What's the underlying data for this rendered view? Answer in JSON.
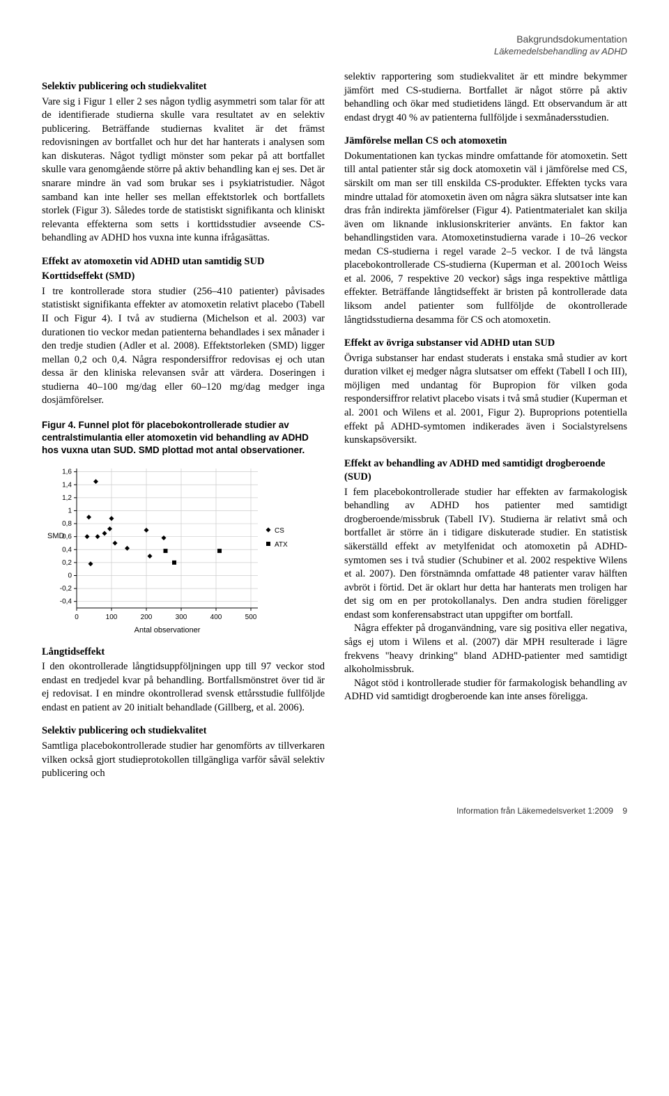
{
  "header": {
    "line1": "Bakgrundsdokumentation",
    "line2": "Läkemedelsbehandling av ADHD"
  },
  "left": {
    "sec1_title": "Selektiv publicering och studiekvalitet",
    "sec1_body": "Vare sig i Figur 1 eller 2 ses någon tydlig asymmetri som talar för att de identifierade studierna skulle vara resultatet av en selektiv publicering. Beträffande studiernas kvalitet är det främst redovisningen av bortfallet och hur det har hanterats i analysen som kan diskuteras. Något tydligt mönster som pekar på att bortfallet skulle vara genomgående större på aktiv behandling kan ej ses. Det är snarare mindre än vad som brukar ses i psykiatristudier. Något samband kan inte heller ses mellan effektstorlek och bortfallets storlek (Figur 3). Således torde de statistiskt signifikanta och kliniskt relevanta effekterna som setts i korttidsstudier avseende CS-behandling av ADHD hos vuxna inte kunna ifrågasättas.",
    "sec2_title": "Effekt av atomoxetin vid ADHD utan samtidig SUD",
    "sec2_sub": "Korttidseffekt (SMD)",
    "sec2_body": "I tre kontrollerade stora studier (256–410 patienter) påvisades statistiskt signifikanta effekter av atomoxetin relativt placebo (Tabell II och Figur 4). I två av studierna (Michelson et al. 2003) var durationen tio veckor medan patienterna behandlades i sex månader i den tredje studien (Adler et al. 2008). Effektstorleken (SMD) ligger mellan 0,2 och 0,4. Några respondersiffror redovisas ej och utan dessa är den kliniska relevansen svår att värdera. Doseringen i studierna 40–100 mg/dag eller 60–120 mg/dag medger inga dosjämförelser.",
    "figcap": "Figur 4. Funnel plot för placebokontrollerade studier av centralstimulantia eller atomoxetin vid behandling av ADHD hos vuxna utan SUD. SMD plottad mot antal observationer.",
    "sec3_title": "Långtidseffekt",
    "sec3_body": "I den okontrollerade långtidsuppföljningen upp till 97 veckor stod endast en tredjedel kvar på behandling. Bortfallsmönstret över tid är ej redovisat. I en mindre okontrollerad svensk ettårsstudie fullföljde endast en patient av 20 initialt behandlade (Gillberg, et al. 2006).",
    "sec4_title": "Selektiv publicering och studiekvalitet",
    "sec4_body": "Samtliga placebokontrollerade studier har genomförts av tillverkaren vilken också gjort studieprotokollen tillgängliga varför såväl selektiv publicering och"
  },
  "right": {
    "r1": "selektiv rapportering som studiekvalitet är ett mindre bekymmer jämfört med CS-studierna. Bortfallet är något större på aktiv behandling och ökar med studietidens längd. Ett observandum är att endast drygt 40 % av patienterna fullföljde i sexmånadersstudien.",
    "r2_title": "Jämförelse mellan CS och atomoxetin",
    "r2_body": "Dokumentationen kan tyckas mindre omfattande för atomoxetin. Sett till antal patienter står sig dock atomoxetin väl i jämförelse med CS, särskilt om man ser till enskilda CS-produkter. Effekten tycks vara mindre uttalad för atomoxetin även om några säkra slutsatser inte kan dras från indirekta jämförelser (Figur 4). Patientmaterialet kan skilja även om liknande inklusionskriterier använts. En faktor kan behandlingstiden vara. Atomoxetinstudierna varade i 10–26 veckor medan CS-studierna i regel varade 2–5 veckor. I de två längsta placebokontrollerade CS-studierna (Kuperman et al. 2001och Weiss et al. 2006, 7 respektive 20 veckor) sågs inga respektive måttliga effekter. Beträffande långtidseffekt är bristen på kontrollerade data liksom andel patienter som fullföljde de okontrollerade långtidsstudierna desamma för CS och atomoxetin.",
    "r3_title": "Effekt av övriga substanser vid ADHD utan SUD",
    "r3_body": "Övriga substanser har endast studerats i enstaka små studier av kort duration vilket ej medger några slutsatser om effekt (Tabell I och III), möjligen med undantag för Bupropion för vilken goda respondersiffror relativt placebo visats i två små studier (Kuperman et al. 2001 och Wilens et al. 2001, Figur 2). Buproprions potentiella effekt på ADHD-symtomen indikerades även i Socialstyrelsens kunskapsöversikt.",
    "r4_title": "Effekt av behandling av ADHD med samtidigt drogberoende (SUD)",
    "r4_body1": "I fem placebokontrollerade studier har effekten av farmakologisk behandling av ADHD hos patienter med samtidigt drogberoende/missbruk (Tabell IV). Studierna är relativt små och bortfallet är större än i tidigare diskuterade studier. En statistisk säkerställd effekt av metylfenidat och atomoxetin på ADHD-symtomen ses i två studier (Schubiner et al. 2002 respektive Wilens et al. 2007). Den förstnämnda omfattade 48 patienter varav hälften avbröt i förtid. Det är oklart hur detta har hanterats men troligen har det sig om en per protokollanalys. Den andra studien föreligger endast som konferensabstract utan uppgifter om bortfall.",
    "r4_body2": "Några effekter på droganvändning, vare sig positiva eller negativa, sågs ej utom i Wilens et al. (2007) där MPH resulterade i lägre frekvens \"heavy drinking\" bland ADHD-patienter med samtidigt alkoholmissbruk.",
    "r4_body3": "Något stöd i kontrollerade studier för farmakologisk behandling av ADHD vid samtidigt drogberoende kan inte anses föreligga."
  },
  "chart": {
    "type": "scatter",
    "y_label": "SMD",
    "x_label": "Antal observationer",
    "x_ticks": [
      0,
      100,
      200,
      300,
      400,
      500
    ],
    "y_ticks": [
      -0.4,
      -0.2,
      0,
      0.2,
      0.4,
      0.6,
      0.8,
      1.0,
      1.2,
      1.4,
      1.6
    ],
    "xlim": [
      0,
      520
    ],
    "ylim": [
      -0.5,
      1.65
    ],
    "axis_color": "#000000",
    "grid_color": "#cccccc",
    "grid": true,
    "tick_fontsize": 10,
    "label_fontsize": 11,
    "legend_fontsize": 10,
    "marker_size": 7,
    "cs": {
      "label": "CS",
      "color": "#000000",
      "marker": "diamond",
      "points": [
        [
          30,
          0.6
        ],
        [
          35,
          0.9
        ],
        [
          40,
          0.18
        ],
        [
          55,
          1.45
        ],
        [
          60,
          0.6
        ],
        [
          80,
          0.65
        ],
        [
          95,
          0.72
        ],
        [
          100,
          0.88
        ],
        [
          110,
          0.5
        ],
        [
          145,
          0.42
        ],
        [
          200,
          0.7
        ],
        [
          210,
          0.3
        ],
        [
          250,
          0.58
        ]
      ]
    },
    "atx": {
      "label": "ATX",
      "color": "#000000",
      "marker": "square",
      "points": [
        [
          255,
          0.38
        ],
        [
          280,
          0.2
        ],
        [
          410,
          0.38
        ]
      ]
    }
  },
  "footer": {
    "text": "Information från Läkemedelsverket 1:2009",
    "page": "9"
  }
}
